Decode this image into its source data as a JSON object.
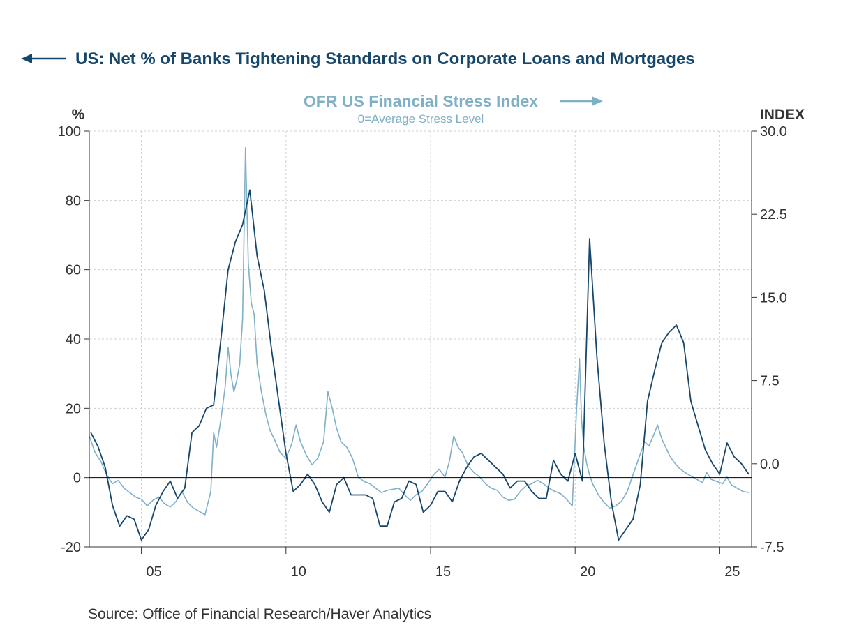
{
  "colors": {
    "left_series": "#17466b",
    "right_series": "#7fb0c6",
    "grid": "#cfcfcf",
    "axis": "#333333",
    "text": "#333333"
  },
  "source": "Source:  Office of Financial Research/Haver Analytics",
  "chart_data": {
    "type": "line",
    "title_left": "US: Net % of Banks Tightening Standards on Corporate Loans and Mortgages",
    "title_right": "OFR US Financial Stress Index",
    "subtitle_right": "0=Average Stress Level",
    "left_axis": {
      "unit": "%",
      "ylim": [
        -20,
        100
      ],
      "ticks": [
        "100",
        "80",
        "60",
        "40",
        "20",
        "0",
        "-20"
      ],
      "tick_values": [
        100,
        80,
        60,
        40,
        20,
        0,
        -20
      ]
    },
    "right_axis": {
      "unit": "INDEX",
      "ylim": [
        -7.5,
        30.0
      ],
      "ticks": [
        "30.0",
        "22.5",
        "15.0",
        "7.5",
        "0.0",
        "-7.5"
      ],
      "tick_values": [
        30.0,
        22.5,
        15.0,
        7.5,
        0.0,
        -7.5
      ]
    },
    "x_axis": {
      "xlim": [
        2003.2,
        2026.1
      ],
      "ticks": [
        "05",
        "10",
        "15",
        "20",
        "25"
      ],
      "tick_values": [
        2005,
        2010,
        2015,
        2020,
        2025
      ]
    },
    "grid": true,
    "zero_line": true,
    "series": [
      {
        "name": "US: Net % of Banks Tightening Standards on Corporate Loans and Mortgages",
        "axis": "left",
        "x": [
          2003.25,
          2003.5,
          2003.75,
          2004.0,
          2004.25,
          2004.5,
          2004.75,
          2005.0,
          2005.25,
          2005.5,
          2005.75,
          2006.0,
          2006.25,
          2006.5,
          2006.75,
          2007.0,
          2007.25,
          2007.5,
          2007.75,
          2008.0,
          2008.25,
          2008.5,
          2008.75,
          2009.0,
          2009.25,
          2009.5,
          2009.75,
          2010.0,
          2010.25,
          2010.5,
          2010.75,
          2011.0,
          2011.25,
          2011.5,
          2011.75,
          2012.0,
          2012.25,
          2012.5,
          2012.75,
          2013.0,
          2013.25,
          2013.5,
          2013.75,
          2014.0,
          2014.25,
          2014.5,
          2014.75,
          2015.0,
          2015.25,
          2015.5,
          2015.75,
          2016.0,
          2016.25,
          2016.5,
          2016.75,
          2017.0,
          2017.25,
          2017.5,
          2017.75,
          2018.0,
          2018.25,
          2018.5,
          2018.75,
          2019.0,
          2019.25,
          2019.5,
          2019.75,
          2020.0,
          2020.25,
          2020.5,
          2020.75,
          2021.0,
          2021.25,
          2021.5,
          2021.75,
          2022.0,
          2022.25,
          2022.5,
          2022.75,
          2023.0,
          2023.25,
          2023.5,
          2023.75,
          2024.0,
          2024.25,
          2024.5,
          2024.75,
          2025.0,
          2025.25,
          2025.5,
          2025.75,
          2026.0
        ],
        "values": [
          13,
          9,
          3,
          -8,
          -14,
          -11,
          -12,
          -18,
          -15,
          -8,
          -4,
          -1,
          -6,
          -3,
          13,
          15,
          20,
          21,
          40,
          60,
          68,
          73,
          83,
          64,
          54,
          37,
          22,
          7,
          -4,
          -2,
          1,
          -2,
          -7,
          -10,
          -2,
          0,
          -5,
          -5,
          -5,
          -6,
          -14,
          -14,
          -7,
          -6,
          -1,
          -2,
          -10,
          -8,
          -4,
          -4,
          -7,
          -1,
          3,
          6,
          7,
          5,
          3,
          1,
          -3,
          -1,
          -1,
          -4,
          -6,
          -6,
          5,
          1,
          -1,
          7,
          -1,
          69,
          35,
          10,
          -7,
          -18,
          -15,
          -12,
          -2,
          22,
          31,
          39,
          42,
          44,
          39,
          22,
          15,
          8,
          4,
          1,
          10,
          6,
          4,
          1
        ]
      },
      {
        "name": "OFR US Financial Stress Index",
        "axis": "right",
        "x": [
          2003.2,
          2003.4,
          2003.6,
          2003.8,
          2004.0,
          2004.2,
          2004.4,
          2004.6,
          2004.8,
          2005.0,
          2005.2,
          2005.4,
          2005.6,
          2005.8,
          2006.0,
          2006.2,
          2006.4,
          2006.6,
          2006.8,
          2007.0,
          2007.2,
          2007.4,
          2007.5,
          2007.6,
          2007.75,
          2007.9,
          2008.0,
          2008.1,
          2008.2,
          2008.3,
          2008.4,
          2008.5,
          2008.6,
          2008.7,
          2008.8,
          2008.9,
          2009.0,
          2009.15,
          2009.3,
          2009.45,
          2009.6,
          2009.8,
          2010.0,
          2010.2,
          2010.35,
          2010.5,
          2010.7,
          2010.9,
          2011.1,
          2011.3,
          2011.45,
          2011.6,
          2011.75,
          2011.9,
          2012.1,
          2012.3,
          2012.5,
          2012.7,
          2012.9,
          2013.1,
          2013.3,
          2013.5,
          2013.7,
          2013.9,
          2014.1,
          2014.3,
          2014.5,
          2014.7,
          2014.9,
          2015.1,
          2015.3,
          2015.5,
          2015.65,
          2015.8,
          2015.95,
          2016.1,
          2016.3,
          2016.5,
          2016.7,
          2016.9,
          2017.1,
          2017.3,
          2017.5,
          2017.7,
          2017.9,
          2018.1,
          2018.3,
          2018.5,
          2018.7,
          2018.9,
          2019.1,
          2019.3,
          2019.5,
          2019.7,
          2019.9,
          2020.05,
          2020.15,
          2020.22,
          2020.3,
          2020.4,
          2020.5,
          2020.6,
          2020.8,
          2021.0,
          2021.2,
          2021.4,
          2021.6,
          2021.8,
          2022.0,
          2022.2,
          2022.4,
          2022.55,
          2022.7,
          2022.85,
          2023.0,
          2023.15,
          2023.25,
          2023.4,
          2023.6,
          2023.8,
          2024.0,
          2024.2,
          2024.4,
          2024.55,
          2024.7,
          2024.9,
          2025.1,
          2025.25,
          2025.4,
          2025.6,
          2025.8,
          2026.0
        ],
        "values": [
          2.5,
          1.0,
          0.2,
          -1.0,
          -1.8,
          -1.5,
          -2.2,
          -2.6,
          -3.0,
          -3.2,
          -3.8,
          -3.3,
          -3.0,
          -3.6,
          -3.9,
          -3.4,
          -2.5,
          -3.5,
          -4.0,
          -4.3,
          -4.6,
          -2.5,
          2.8,
          1.5,
          4.0,
          7.0,
          10.5,
          8.0,
          6.5,
          7.5,
          9.0,
          13.0,
          28.5,
          18.0,
          14.5,
          13.5,
          9.0,
          6.5,
          4.5,
          3.0,
          2.2,
          1.0,
          0.5,
          1.8,
          3.5,
          2.0,
          0.8,
          -0.1,
          0.5,
          2.0,
          6.5,
          5.0,
          3.2,
          2.0,
          1.5,
          0.5,
          -1.2,
          -1.6,
          -1.8,
          -2.2,
          -2.6,
          -2.4,
          -2.3,
          -2.2,
          -2.8,
          -3.3,
          -2.8,
          -2.5,
          -1.8,
          -1.0,
          -0.5,
          -1.2,
          0.2,
          2.5,
          1.5,
          1.0,
          -0.2,
          -0.8,
          -1.2,
          -1.8,
          -2.2,
          -2.4,
          -3.0,
          -3.3,
          -3.2,
          -2.5,
          -2.0,
          -1.8,
          -1.5,
          -1.8,
          -2.2,
          -2.5,
          -2.7,
          -3.2,
          -3.8,
          5.0,
          9.5,
          4.0,
          1.5,
          0.0,
          -1.0,
          -1.8,
          -2.8,
          -3.5,
          -4.0,
          -3.8,
          -3.4,
          -2.5,
          -1.0,
          0.5,
          2.0,
          1.6,
          2.5,
          3.5,
          2.2,
          1.4,
          0.8,
          0.2,
          -0.4,
          -0.8,
          -1.1,
          -1.4,
          -1.7,
          -0.8,
          -1.4,
          -1.6,
          -1.8,
          -1.2,
          -1.9,
          -2.2,
          -2.5,
          -2.6
        ]
      }
    ]
  }
}
